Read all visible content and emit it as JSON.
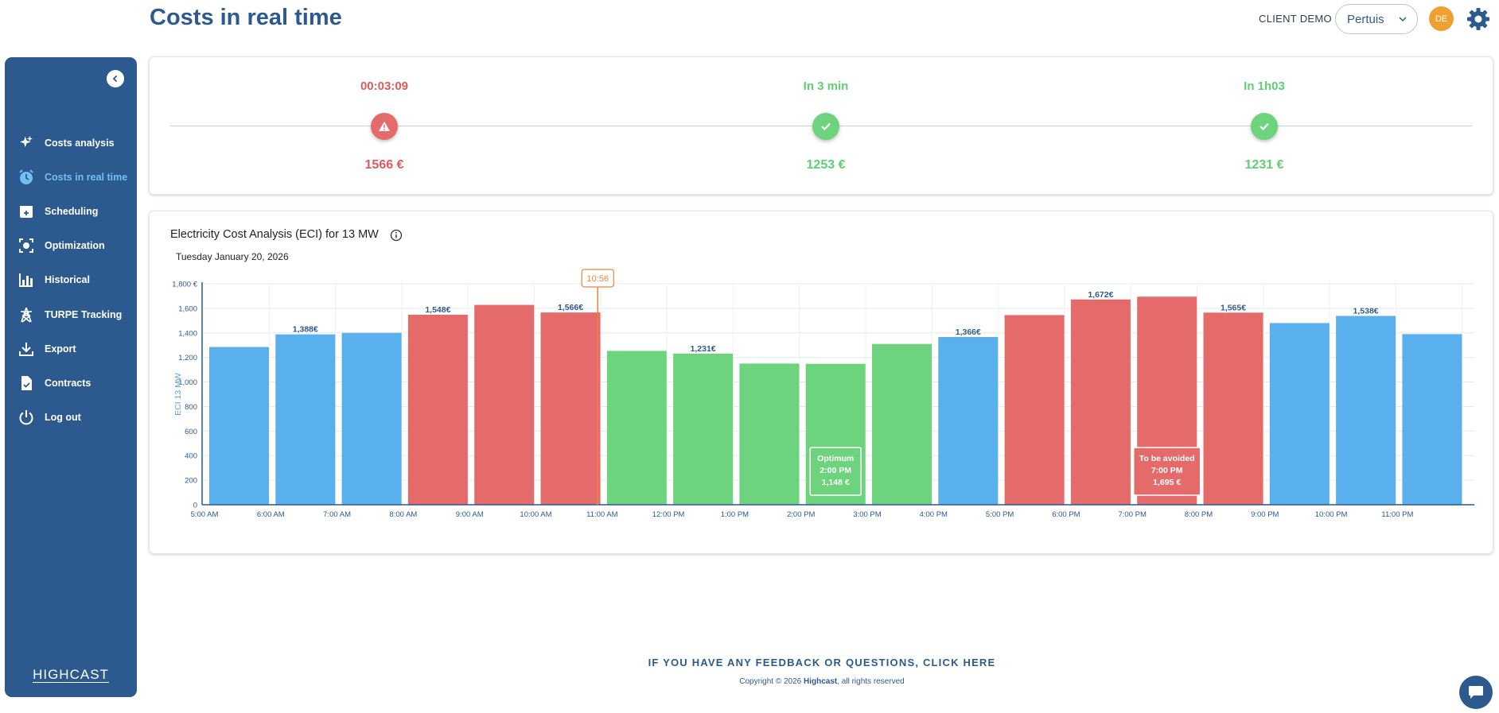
{
  "header": {
    "title": "Costs in real time",
    "client_label": "CLIENT DEMO",
    "site": "Pertuis",
    "avatar_initials": "DE"
  },
  "sidebar": {
    "items": [
      {
        "label": "Costs analysis",
        "icon": "sparkles-icon"
      },
      {
        "label": "Costs in real time",
        "icon": "clock-icon",
        "active": true
      },
      {
        "label": "Scheduling",
        "icon": "calendar-add-icon"
      },
      {
        "label": "Optimization",
        "icon": "target-icon"
      },
      {
        "label": "Historical",
        "icon": "bar-chart-icon"
      },
      {
        "label": "TURPE Tracking",
        "icon": "power-pylon-icon"
      },
      {
        "label": "Export",
        "icon": "download-icon"
      },
      {
        "label": "Contracts",
        "icon": "document-icon"
      },
      {
        "label": "Log out",
        "icon": "power-icon"
      }
    ],
    "brand": "HIGHCAST"
  },
  "timeline": [
    {
      "time": "00:03:09",
      "cost": "1566 €",
      "status": "warning"
    },
    {
      "time": "In 3 min",
      "cost": "1253 €",
      "status": "ok"
    },
    {
      "time": "In 1h03",
      "cost": "1231 €",
      "status": "ok"
    }
  ],
  "chart": {
    "title": "Electricity Cost Analysis (ECI) for 13 MW",
    "date": "Tuesday January 20, 2026",
    "now_marker": "10:56"
  },
  "chart_data": {
    "type": "bar",
    "title": "Electricity Cost Analysis (ECI) for 13 MW",
    "ylabel": "ECI 13 MW",
    "xlabel": "",
    "ylim": [
      0,
      1800
    ],
    "yticks": [
      "0",
      "200",
      "400",
      "600",
      "800",
      "1,000",
      "1,200",
      "1,400",
      "1,600",
      "1,800 €"
    ],
    "categories": [
      "5:00 AM",
      "6:00 AM",
      "7:00 AM",
      "8:00 AM",
      "9:00 AM",
      "10:00 AM",
      "11:00 AM",
      "12:00 PM",
      "1:00 PM",
      "2:00 PM",
      "3:00 PM",
      "4:00 PM",
      "5:00 PM",
      "6:00 PM",
      "7:00 PM",
      "8:00 PM",
      "9:00 PM",
      "10:00 PM",
      "11:00 PM"
    ],
    "values": [
      1285,
      1388,
      1400,
      1548,
      1628,
      1566,
      1253,
      1231,
      1150,
      1148,
      1310,
      1366,
      1545,
      1672,
      1695,
      1565,
      1480,
      1538,
      1390
    ],
    "status": [
      "blue",
      "blue",
      "blue",
      "red",
      "red",
      "red",
      "green",
      "green",
      "green",
      "green",
      "green",
      "blue",
      "red",
      "red",
      "red",
      "red",
      "blue",
      "blue",
      "blue"
    ],
    "data_labels": {
      "1": "1,388€",
      "3": "1,548€",
      "5": "1,566€",
      "7": "1,231€",
      "11": "1,366€",
      "13": "1,672€",
      "15": "1,565€",
      "17": "1,538€"
    },
    "now_marker": "10:56",
    "annotations": [
      {
        "label": "Optimum",
        "time": "2:00 PM",
        "value": "1,148 €",
        "index": 9,
        "kind": "optimum"
      },
      {
        "label": "To be avoided",
        "time": "7:00 PM",
        "value": "1,695 €",
        "index": 14,
        "kind": "avoid"
      }
    ],
    "colors": {
      "blue": "#5ab0ec",
      "red": "#e56b6b",
      "green": "#6dd37d"
    }
  },
  "footer": {
    "feedback": "IF YOU HAVE ANY FEEDBACK OR QUESTIONS, CLICK HERE",
    "copyright_pre": "Copyright © 2026 ",
    "copyright_brand": "Highcast",
    "copyright_post": ", all rights reserved"
  }
}
